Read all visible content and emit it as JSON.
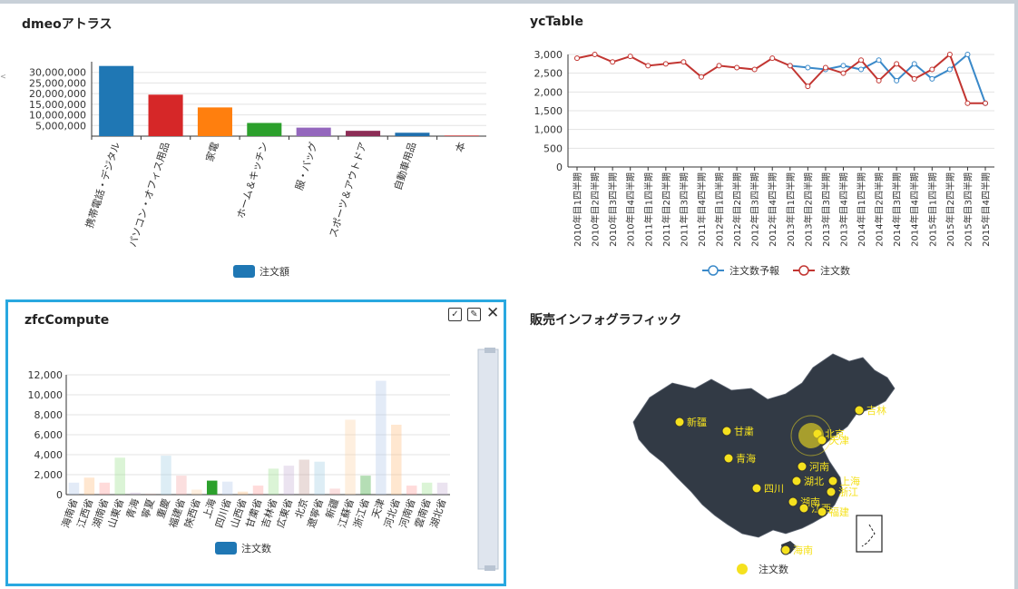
{
  "panels": {
    "p1": {
      "title": "dmeoアトラス"
    },
    "p2": {
      "title": "ycTable"
    },
    "p3": {
      "title": "zfcCompute"
    },
    "p4": {
      "title": "販売インフォグラフィック"
    }
  },
  "toolbar": {
    "select_glyph": "✓",
    "edit_glyph": "✎",
    "close_glyph": "✕"
  },
  "chart_data": [
    {
      "type": "bar",
      "categories": [
        "携帯電話・デジタル",
        "パソコン・オフィス用品",
        "家電",
        "ホーム＆キッチン",
        "服・バッグ",
        "スポーツ＆アウトドア",
        "自動車用品",
        "本"
      ],
      "series": [
        {
          "name": "注文額",
          "values": [
            33000000,
            19500000,
            13500000,
            6200000,
            4000000,
            2500000,
            1600000,
            300000
          ],
          "colors": [
            "#1f77b4",
            "#d62728",
            "#ff7f0e",
            "#2ca02c",
            "#9467bd",
            "#8c2d56",
            "#1f6fae",
            "#c33"
          ]
        }
      ],
      "yticks": [
        "5,000,000",
        "10,000,000",
        "15,000,000",
        "20,000,000",
        "25,000,000",
        "30,000,000"
      ],
      "ylim": [
        0,
        35000000
      ],
      "legend": "bottom"
    },
    {
      "type": "line",
      "categories": [
        "2010年目1四半期",
        "2010年目2四半期",
        "2010年目3四半期",
        "2010年目4四半期",
        "2011年目1四半期",
        "2011年目2四半期",
        "2011年目3四半期",
        "2011年目4四半期",
        "2012年目1四半期",
        "2012年目2四半期",
        "2012年目3四半期",
        "2012年目4四半期",
        "2013年目1四半期",
        "2013年目2四半期",
        "2013年目3四半期",
        "2013年目4四半期",
        "2014年目1四半期",
        "2014年目2四半期",
        "2014年目3四半期",
        "2014年目4四半期",
        "2015年目1四半期",
        "2015年目2四半期",
        "2015年目3四半期",
        "2015年目4四半期"
      ],
      "series": [
        {
          "name": "注文数予報",
          "values": [
            null,
            null,
            null,
            null,
            null,
            null,
            null,
            null,
            null,
            null,
            null,
            null,
            2700,
            2650,
            2600,
            2700,
            2600,
            2850,
            2300,
            2750,
            2350,
            2600,
            3000,
            1700
          ],
          "color": "#3a89c9"
        },
        {
          "name": "注文数",
          "values": [
            2900,
            3000,
            2800,
            2950,
            2700,
            2750,
            2800,
            2400,
            2700,
            2650,
            2600,
            2900,
            2700,
            2150,
            2650,
            2500,
            2850,
            2300,
            2750,
            2350,
            2600,
            3000,
            1700,
            1700
          ],
          "color": "#c23531"
        }
      ],
      "yticks": [
        "0",
        "500",
        "1,000",
        "1,500",
        "2,000",
        "2,500",
        "3,000"
      ],
      "ylim": [
        0,
        3000
      ],
      "legend": "bottom"
    },
    {
      "type": "bar",
      "categories": [
        "海南省",
        "江西省",
        "湖南省",
        "山東省",
        "青海",
        "寧夏",
        "重慶",
        "福建省",
        "陝西省",
        "上海",
        "四川省",
        "山西省",
        "甘粛省",
        "吉林省",
        "広東省",
        "北京",
        "遼寧省",
        "新疆",
        "江蘇省",
        "浙江省",
        "天津",
        "河北省",
        "河南省",
        "雲南省",
        "湖北省"
      ],
      "series": [
        {
          "name": "注文数",
          "values": [
            1200,
            1700,
            1200,
            3700,
            200,
            100,
            3900,
            1900,
            500,
            1400,
            1300,
            300,
            900,
            2600,
            2900,
            3500,
            3300,
            600,
            7500,
            1900,
            11400,
            7000,
            900,
            1200,
            1200
          ],
          "highlight_index": 9
        }
      ],
      "yticks": [
        "0",
        "2,000",
        "4,000",
        "6,000",
        "8,000",
        "10,000",
        "12,000"
      ],
      "ylim": [
        0,
        12000
      ],
      "legend": "bottom"
    }
  ],
  "map": {
    "legend": "注文数",
    "labels": [
      "新疆",
      "甘粛",
      "青海",
      "四川",
      "北京",
      "天津",
      "吉林",
      "河南",
      "湖北",
      "上海",
      "浙江",
      "湖南",
      "江西",
      "福建",
      "海南"
    ],
    "map_color": "#323a45",
    "marker_color": "#f5e11e"
  }
}
